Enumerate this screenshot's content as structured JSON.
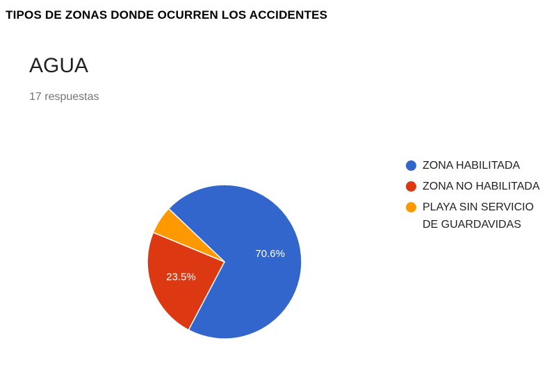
{
  "heading": "TIPOS DE ZONAS DONDE OCURREN LOS ACCIDENTES",
  "chart_data": {
    "type": "pie",
    "title": "AGUA",
    "subtitle": "17 respuestas",
    "legend_position": "right",
    "slices": [
      {
        "label": "ZONA HABILITADA",
        "value": 70.6,
        "display": "70.6%",
        "color": "#3366cc"
      },
      {
        "label": "ZONA NO HABILITADA",
        "value": 23.5,
        "display": "23.5%",
        "color": "#dc3912"
      },
      {
        "label": "PLAYA SIN SERVICIO DE GUARDAVIDAS",
        "value": 5.9,
        "display": "",
        "color": "#ff9900"
      }
    ]
  }
}
